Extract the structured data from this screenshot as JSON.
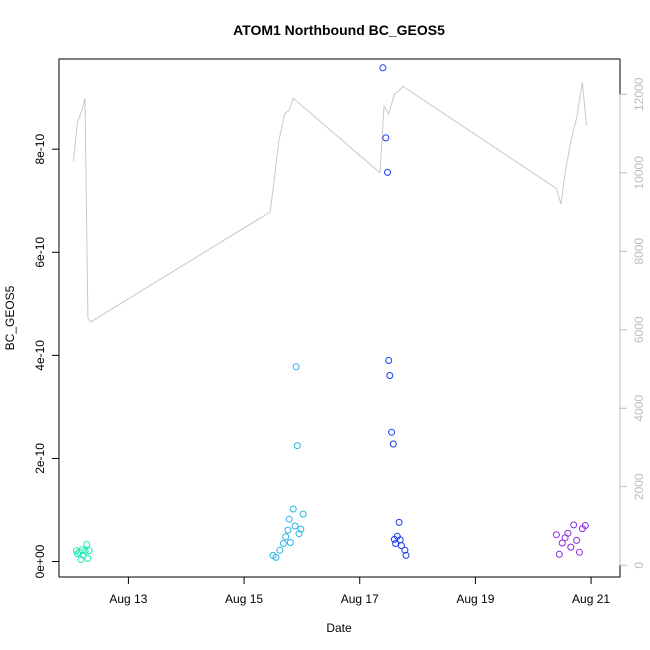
{
  "chart_data": {
    "type": "scatter",
    "title": "ATOM1 Northbound BC_GEOS5",
    "xlabel": "Date",
    "ylabel": "BC_GEOS5",
    "x_ticks": [
      "Aug 13",
      "Aug 15",
      "Aug 17",
      "Aug 19",
      "Aug 21"
    ],
    "y_ticks": [
      "0e+00",
      "2e-10",
      "4e-10",
      "6e-10",
      "8e-10"
    ],
    "y2_ticks": [
      "0",
      "2000",
      "4000",
      "6000",
      "8000",
      "10000",
      "12000"
    ],
    "y_range": [
      -3e-11,
      9.75e-10
    ],
    "y2_range": [
      -300,
      12900
    ],
    "x_range_days": [
      11.8,
      21.5
    ],
    "grid": false,
    "colors": {
      "line": "#c8c8c8",
      "right_axis": "#bdbdbd",
      "flight1": "#1de9b6",
      "flight2": "#29b6e8",
      "flight3": "#1a3cf0",
      "flight4": "#8a2be2"
    },
    "altitude_series": {
      "name": "",
      "x": [
        12.05,
        12.12,
        12.2,
        12.25,
        12.3,
        12.35,
        15.45,
        15.52,
        15.6,
        15.7,
        15.78,
        15.85,
        17.35,
        17.42,
        17.5,
        17.6,
        17.68,
        17.75,
        20.4,
        20.48,
        20.55,
        20.65,
        20.75,
        20.85,
        20.92
      ],
      "y": [
        10300,
        11300,
        11600,
        11900,
        6300,
        6200,
        9000,
        9800,
        10800,
        11500,
        11600,
        11900,
        10000,
        11700,
        11500,
        12000,
        12100,
        12200,
        9600,
        9200,
        10000,
        10800,
        11400,
        12300,
        11200
      ]
    },
    "points": {
      "x": [
        12.1,
        12.12,
        12.15,
        12.2,
        12.22,
        12.25,
        12.28,
        12.32,
        12.18,
        12.3,
        15.5,
        15.55,
        15.62,
        15.68,
        15.72,
        15.76,
        15.78,
        15.8,
        15.85,
        15.88,
        15.9,
        15.92,
        15.95,
        15.98,
        16.02,
        17.4,
        17.45,
        17.48,
        17.5,
        17.52,
        17.55,
        17.58,
        17.6,
        17.62,
        17.65,
        17.68,
        17.7,
        17.72,
        17.78,
        17.8,
        20.4,
        20.45,
        20.5,
        20.55,
        20.6,
        20.65,
        20.7,
        20.75,
        20.8,
        20.85,
        20.9
      ],
      "y": [
        2.1e-11,
        1.5e-11,
        1.8e-11,
        2.3e-11,
        1.2e-11,
        2e-11,
        3.3e-11,
        2.1e-11,
        4e-12,
        6e-12,
        1.2e-11,
        8e-12,
        2.2e-11,
        3.5e-11,
        4.8e-11,
        6.1e-11,
        8.2e-11,
        3.7e-11,
        1.02e-10,
        6.9e-11,
        3.78e-10,
        2.25e-10,
        5.4e-11,
        6.3e-11,
        9.2e-11,
        9.58e-10,
        8.22e-10,
        7.55e-10,
        3.9e-10,
        3.61e-10,
        2.51e-10,
        2.28e-10,
        4.3e-11,
        3.5e-11,
        4.9e-11,
        7.6e-11,
        4.2e-11,
        3.1e-11,
        2.2e-11,
        1.2e-11,
        5.2e-11,
        1.4e-11,
        3.6e-11,
        4.6e-11,
        5.5e-11,
        2.8e-11,
        7.1e-11,
        4.1e-11,
        1.8e-11,
        6.4e-11,
        7e-11
      ],
      "flight": [
        1,
        1,
        1,
        1,
        1,
        1,
        1,
        1,
        1,
        1,
        2,
        2,
        2,
        2,
        2,
        2,
        2,
        2,
        2,
        2,
        2,
        2,
        2,
        2,
        2,
        3,
        3,
        3,
        3,
        3,
        3,
        3,
        3,
        3,
        3,
        3,
        3,
        3,
        3,
        3,
        4,
        4,
        4,
        4,
        4,
        4,
        4,
        4,
        4,
        4,
        4
      ]
    }
  }
}
